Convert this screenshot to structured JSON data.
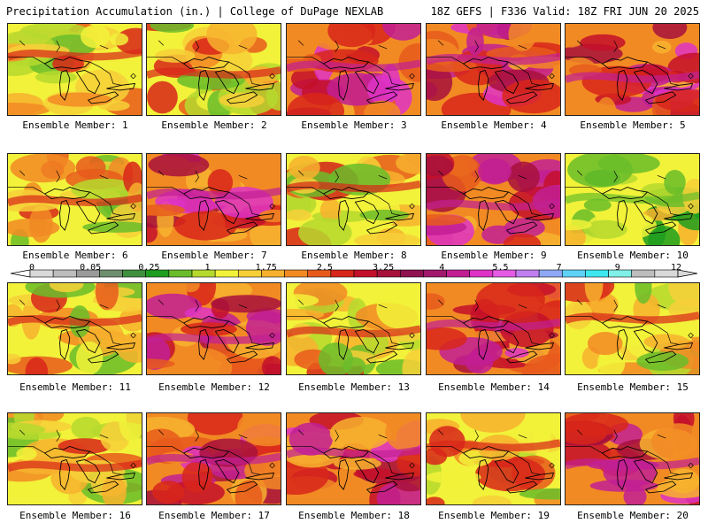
{
  "header": {
    "title": "Precipitation Accumulation (in.) | College of DuPage NEXLAB",
    "run_info": "18Z GEFS | F336 Valid: 18Z FRI JUN 20 2025"
  },
  "colorbar": {
    "labels": [
      "0",
      "0.05",
      "0.25",
      "1",
      "1.75",
      "2.5",
      "3.25",
      "4",
      "5.5",
      "7",
      "9",
      "12"
    ],
    "colors": [
      "#d9d9d9",
      "#bdbdbd",
      "#9a9a9a",
      "#6e8f6e",
      "#3e8f3e",
      "#1e9e1e",
      "#6abd2a",
      "#b6d92e",
      "#f2f23a",
      "#f7d038",
      "#f7b12e",
      "#f28a24",
      "#e85a1c",
      "#d8261a",
      "#c40f2a",
      "#a8103c",
      "#8e1250",
      "#a1186c",
      "#c21f94",
      "#de32c6",
      "#e45be6",
      "#c07ef0",
      "#8ea8f5",
      "#5fd2f7",
      "#3fe8f0",
      "#7fefe8",
      "#bdbdbd",
      "#d9d9d9"
    ]
  },
  "members": [
    {
      "label": "Ensemble Member: 1",
      "tone": "mixed"
    },
    {
      "label": "Ensemble Member: 2",
      "tone": "mixed"
    },
    {
      "label": "Ensemble Member: 3",
      "tone": "heavy"
    },
    {
      "label": "Ensemble Member: 4",
      "tone": "heavy"
    },
    {
      "label": "Ensemble Member: 5",
      "tone": "heavy"
    },
    {
      "label": "Ensemble Member: 6",
      "tone": "mixed"
    },
    {
      "label": "Ensemble Member: 7",
      "tone": "heavy"
    },
    {
      "label": "Ensemble Member: 8",
      "tone": "mixed"
    },
    {
      "label": "Ensemble Member: 9",
      "tone": "heavy"
    },
    {
      "label": "Ensemble Member: 10",
      "tone": "light"
    },
    {
      "label": "Ensemble Member: 11",
      "tone": "mixed"
    },
    {
      "label": "Ensemble Member: 12",
      "tone": "heavy"
    },
    {
      "label": "Ensemble Member: 13",
      "tone": "mixed"
    },
    {
      "label": "Ensemble Member: 14",
      "tone": "heavy"
    },
    {
      "label": "Ensemble Member: 15",
      "tone": "mixed"
    },
    {
      "label": "Ensemble Member: 16",
      "tone": "mixed"
    },
    {
      "label": "Ensemble Member: 17",
      "tone": "heavy"
    },
    {
      "label": "Ensemble Member: 18",
      "tone": "heavy"
    },
    {
      "label": "Ensemble Member: 19",
      "tone": "mixed"
    },
    {
      "label": "Ensemble Member: 20",
      "tone": "heavy"
    }
  ]
}
